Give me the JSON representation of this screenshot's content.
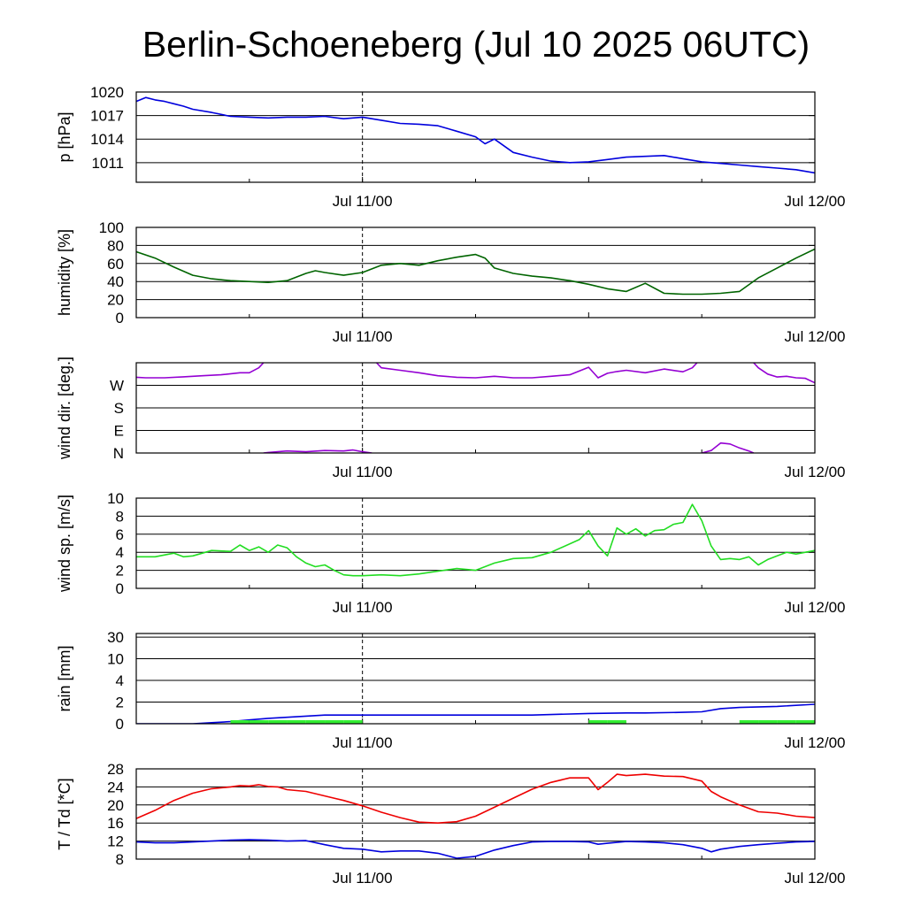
{
  "title": "Berlin-Schoeneberg (Jul 10 2025 06UTC)",
  "x_tick_labels": [
    "Jul 11/00",
    "Jul 12/00"
  ],
  "colors": {
    "pressure": "#0000dd",
    "humidity": "#006400",
    "wind_dir": "#9400d3",
    "wind_speed": "#22dd22",
    "rain_total": "#0000dd",
    "rain_bar": "#33ee33",
    "temperature": "#ee0000",
    "dewpoint": "#0000dd"
  },
  "chart_data": [
    {
      "type": "line",
      "ylabel": "p [hPa]",
      "x_unit": "hours since Jul 10 06UTC",
      "ylim": [
        1008.5,
        1020
      ],
      "yticks": [
        1011,
        1014,
        1017,
        1020
      ],
      "ytick_labels": [
        "1011",
        "1014",
        "1017",
        "1020"
      ],
      "series": [
        {
          "color_key": "pressure",
          "x": [
            0,
            1,
            2,
            3,
            4,
            5,
            6,
            8,
            10,
            12,
            14,
            16,
            18,
            20,
            22,
            24,
            26,
            28,
            30,
            32,
            34,
            36,
            37,
            38,
            40,
            42,
            44,
            46,
            48,
            50,
            52,
            54,
            56,
            58,
            60,
            62,
            64,
            66,
            68,
            70,
            72
          ],
          "y": [
            1018.8,
            1019.3,
            1019.0,
            1018.8,
            1018.5,
            1018.2,
            1017.8,
            1017.4,
            1016.9,
            1016.8,
            1016.7,
            1016.8,
            1016.8,
            1016.9,
            1016.6,
            1016.8,
            1016.4,
            1016.0,
            1015.9,
            1015.7,
            1015.0,
            1014.3,
            1013.4,
            1014.0,
            1012.3,
            1011.7,
            1011.2,
            1011.0,
            1011.1,
            1011.4,
            1011.7,
            1011.8,
            1011.9,
            1011.5,
            1011.1,
            1010.9,
            1010.7,
            1010.5,
            1010.3,
            1010.1,
            1009.7
          ]
        }
      ]
    },
    {
      "type": "line",
      "ylabel": "humidity [%]",
      "x_unit": "hours since Jul 10 06UTC",
      "ylim": [
        0,
        100
      ],
      "yticks": [
        0,
        20,
        40,
        60,
        80,
        100
      ],
      "ytick_labels": [
        "0",
        "20",
        "40",
        "60",
        "80",
        "100"
      ],
      "series": [
        {
          "color_key": "humidity",
          "x": [
            0,
            2,
            4,
            6,
            8,
            10,
            12,
            14,
            16,
            17,
            18,
            19,
            20,
            22,
            24,
            26,
            28,
            30,
            32,
            34,
            36,
            37,
            38,
            40,
            42,
            44,
            46,
            48,
            50,
            52,
            54,
            56,
            58,
            60,
            62,
            64,
            66,
            68,
            70,
            72
          ],
          "y": [
            73,
            66,
            56,
            47,
            43,
            41,
            40,
            39,
            41,
            45,
            49,
            52,
            50,
            47,
            50,
            58,
            60,
            58,
            63,
            67,
            70,
            66,
            55,
            49,
            46,
            44,
            41,
            37,
            32,
            29,
            38,
            27,
            26,
            26,
            27,
            29,
            44,
            55,
            66,
            76
          ]
        }
      ]
    },
    {
      "type": "line",
      "ylabel": "wind dir. [deg.]",
      "x_unit": "hours since Jul 10 06UTC",
      "ylim": [
        0,
        360
      ],
      "yticks": [
        0,
        90,
        180,
        270
      ],
      "ytick_labels": [
        "N",
        "E",
        "S",
        "W"
      ],
      "series": [
        {
          "color_key": "wind_dir",
          "x": [
            0,
            1,
            3,
            5,
            7,
            9,
            11,
            12,
            13,
            13.5
          ],
          "y": [
            302,
            300,
            300,
            304,
            308,
            312,
            320,
            320,
            340,
            360
          ]
        },
        {
          "color_key": "wind_dir",
          "x": [
            13.5,
            14,
            16,
            18,
            20,
            22,
            23,
            24,
            25
          ],
          "y": [
            0,
            2,
            8,
            5,
            10,
            8,
            12,
            5,
            0
          ]
        },
        {
          "color_key": "wind_dir",
          "x": [
            25.5,
            26,
            28,
            30,
            32,
            34,
            36,
            38,
            40,
            42,
            44,
            46,
            48,
            49,
            50,
            51,
            52,
            54,
            56,
            58,
            59,
            59.5
          ],
          "y": [
            360,
            340,
            330,
            320,
            308,
            302,
            300,
            306,
            300,
            300,
            306,
            312,
            342,
            300,
            318,
            325,
            330,
            320,
            335,
            324,
            340,
            360
          ]
        },
        {
          "color_key": "wind_dir",
          "x": [
            60,
            61,
            62,
            63,
            64,
            65,
            65.5
          ],
          "y": [
            0,
            10,
            40,
            36,
            20,
            8,
            0
          ]
        },
        {
          "color_key": "wind_dir",
          "x": [
            65.5,
            66,
            67,
            68,
            69,
            70,
            71,
            72
          ],
          "y": [
            360,
            340,
            315,
            303,
            306,
            300,
            298,
            280
          ]
        }
      ]
    },
    {
      "type": "line",
      "ylabel": "wind sp. [m/s]",
      "x_unit": "hours since Jul 10 06UTC",
      "ylim": [
        0,
        10
      ],
      "yticks": [
        0,
        2,
        4,
        6,
        8,
        10
      ],
      "ytick_labels": [
        "0",
        "2",
        "4",
        "6",
        "8",
        "10"
      ],
      "series": [
        {
          "color_key": "wind_speed",
          "x": [
            0,
            2,
            4,
            5,
            6,
            8,
            10,
            11,
            12,
            13,
            14,
            15,
            16,
            17,
            18,
            19,
            20,
            21,
            22,
            23,
            24,
            26,
            28,
            30,
            32,
            34,
            36,
            38,
            40,
            42,
            44,
            47,
            48,
            49,
            50,
            51,
            52,
            53,
            54,
            55,
            56,
            57,
            58,
            59,
            60,
            61,
            62,
            63,
            64,
            65,
            66,
            67,
            68,
            69,
            70,
            71,
            72
          ],
          "y": [
            3.5,
            3.5,
            3.9,
            3.5,
            3.6,
            4.2,
            4.1,
            4.8,
            4.2,
            4.6,
            4.0,
            4.8,
            4.5,
            3.5,
            2.8,
            2.4,
            2.6,
            2.0,
            1.5,
            1.4,
            1.4,
            1.5,
            1.4,
            1.6,
            1.9,
            2.2,
            2.0,
            2.8,
            3.3,
            3.4,
            4.0,
            5.4,
            6.4,
            4.7,
            3.6,
            6.7,
            6.0,
            6.6,
            5.8,
            6.4,
            6.5,
            7.1,
            7.3,
            9.3,
            7.5,
            4.7,
            3.2,
            3.3,
            3.2,
            3.5,
            2.6,
            3.2,
            3.6,
            4.0,
            3.8,
            4.0,
            4.2
          ]
        }
      ]
    },
    {
      "type": "line",
      "ylabel": "rain [mm]",
      "x_unit": "hours since Jul 10 06UTC",
      "y_scale": "nonlinear (0,2,4,10,30 evenly spaced)",
      "ylim": [
        0,
        30
      ],
      "yticks": [
        0,
        2,
        4,
        10,
        30
      ],
      "ytick_labels": [
        "0",
        "2",
        "4",
        "10",
        "30"
      ],
      "series": [
        {
          "color_key": "rain_total",
          "role": "accumulated",
          "x": [
            0,
            6,
            8,
            10,
            12,
            14,
            16,
            18,
            20,
            22,
            24,
            30,
            36,
            42,
            48,
            52,
            54,
            58,
            60,
            62,
            64,
            68,
            72
          ],
          "y": [
            0,
            0,
            0.1,
            0.2,
            0.35,
            0.5,
            0.6,
            0.7,
            0.8,
            0.8,
            0.8,
            0.8,
            0.8,
            0.8,
            0.95,
            1.0,
            1.0,
            1.05,
            1.1,
            1.4,
            1.5,
            1.6,
            1.8
          ]
        },
        {
          "color_key": "rain_bar",
          "role": "interval",
          "x": [
            10,
            12,
            14,
            16,
            18,
            20,
            22,
            48,
            50,
            64,
            66,
            68,
            70,
            72
          ],
          "y": [
            0.15,
            0.2,
            0.2,
            0.2,
            0.2,
            0.2,
            0.05,
            0.05,
            0.05,
            0.2,
            0.2,
            0.2,
            0.2,
            0.2
          ]
        }
      ]
    },
    {
      "type": "line",
      "ylabel": "T / Td [*C]",
      "x_unit": "hours since Jul 10 06UTC",
      "ylim": [
        8,
        28
      ],
      "yticks": [
        8,
        12,
        16,
        20,
        24,
        28
      ],
      "ytick_labels": [
        "8",
        "12",
        "16",
        "20",
        "24",
        "28"
      ],
      "series": [
        {
          "color_key": "temperature",
          "x": [
            0,
            2,
            4,
            6,
            8,
            10,
            11,
            12,
            13,
            14,
            15,
            16,
            18,
            20,
            22,
            24,
            26,
            28,
            30,
            32,
            34,
            36,
            38,
            40,
            42,
            44,
            46,
            48,
            49,
            50,
            51,
            52,
            54,
            56,
            58,
            60,
            61,
            62,
            64,
            66,
            68,
            70,
            72
          ],
          "y": [
            17,
            18.8,
            21,
            22.6,
            23.6,
            24.0,
            24.3,
            24.2,
            24.5,
            24.1,
            24.0,
            23.4,
            23.0,
            22.0,
            21.0,
            19.8,
            18.4,
            17.2,
            16.2,
            16.0,
            16.3,
            17.5,
            19.5,
            21.5,
            23.5,
            25.0,
            26.0,
            26.0,
            23.4,
            25.0,
            26.8,
            26.5,
            26.8,
            26.4,
            26.3,
            25.3,
            23.0,
            21.8,
            20.0,
            18.5,
            18.2,
            17.5,
            17.2
          ]
        },
        {
          "color_key": "dewpoint",
          "x": [
            0,
            2,
            4,
            6,
            8,
            10,
            12,
            14,
            16,
            18,
            20,
            22,
            24,
            26,
            28,
            30,
            32,
            34,
            36,
            38,
            40,
            42,
            44,
            46,
            48,
            49,
            50,
            52,
            54,
            56,
            58,
            60,
            61,
            62,
            64,
            66,
            68,
            70,
            72
          ],
          "y": [
            11.8,
            11.6,
            11.6,
            11.8,
            12.0,
            12.2,
            12.3,
            12.2,
            12.0,
            12.1,
            11.2,
            10.4,
            10.2,
            9.6,
            9.8,
            9.8,
            9.3,
            8.2,
            8.6,
            10.0,
            11.0,
            11.8,
            11.9,
            11.9,
            11.8,
            11.3,
            11.5,
            11.9,
            11.8,
            11.6,
            11.2,
            10.4,
            9.6,
            10.2,
            10.8,
            11.2,
            11.5,
            11.8,
            11.9
          ]
        }
      ]
    }
  ]
}
